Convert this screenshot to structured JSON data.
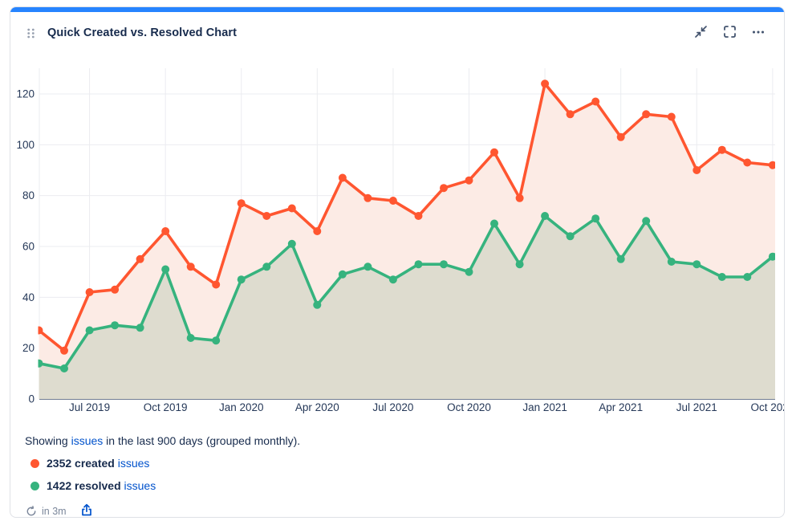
{
  "card": {
    "title": "Quick Created vs. Resolved Chart",
    "accent_color": "#2684FF"
  },
  "summary": {
    "prefix": "Showing ",
    "link_label": "issues",
    "suffix": " in the last 900 days (grouped monthly)."
  },
  "legend": [
    {
      "count_label": "2352 created",
      "link_label": "issues",
      "color": "#FF5630"
    },
    {
      "count_label": "1422 resolved",
      "link_label": "issues",
      "color": "#36B37E"
    }
  ],
  "footer": {
    "refresh_countdown": "in 3m"
  },
  "colors": {
    "link": "#0052CC",
    "grid": "#EBECF0",
    "axis_line": "#42526E",
    "tick_text": "#253858",
    "header_icons": "#44546F",
    "export_icon": "#0052CC",
    "footer_text": "#7A869A"
  },
  "chart_data": {
    "type": "line",
    "title": "Quick Created vs. Resolved Chart",
    "xlabel": "",
    "ylabel": "",
    "grid": true,
    "legend_position": "bottom",
    "ylim": [
      0,
      126
    ],
    "y_ticks": [
      0,
      20,
      40,
      60,
      80,
      100,
      120
    ],
    "categories": [
      "May 2019",
      "Jun 2019",
      "Jul 2019",
      "Aug 2019",
      "Sep 2019",
      "Oct 2019",
      "Nov 2019",
      "Dec 2019",
      "Jan 2020",
      "Feb 2020",
      "Mar 2020",
      "Apr 2020",
      "May 2020",
      "Jun 2020",
      "Jul 2020",
      "Aug 2020",
      "Sep 2020",
      "Oct 2020",
      "Nov 2020",
      "Dec 2020",
      "Jan 2021",
      "Feb 2021",
      "Mar 2021",
      "Apr 2021",
      "May 2021",
      "Jun 2021",
      "Jul 2021",
      "Aug 2021",
      "Sep 2021",
      "Oct 2021"
    ],
    "x_tick_labels": [
      "Jul 2019",
      "Oct 2019",
      "Jan 2020",
      "Apr 2020",
      "Jul 2020",
      "Oct 2020",
      "Jan 2021",
      "Apr 2021",
      "Jul 2021",
      "Oct 2021"
    ],
    "series": [
      {
        "name": "created",
        "total": 2352,
        "color": "#FF5630",
        "fill": "#FCEBE5",
        "values": [
          27,
          19,
          42,
          43,
          55,
          66,
          52,
          45,
          77,
          72,
          75,
          66,
          87,
          79,
          78,
          72,
          83,
          86,
          97,
          79,
          124,
          112,
          117,
          103,
          112,
          111,
          90,
          98,
          93,
          92
        ]
      },
      {
        "name": "resolved",
        "total": 1422,
        "color": "#36B37E",
        "fill": "#DEDCCF",
        "values": [
          14,
          12,
          27,
          29,
          28,
          51,
          24,
          23,
          47,
          52,
          61,
          37,
          49,
          52,
          47,
          53,
          53,
          50,
          69,
          53,
          72,
          64,
          71,
          55,
          70,
          54,
          53,
          48,
          48,
          56
        ]
      }
    ]
  }
}
